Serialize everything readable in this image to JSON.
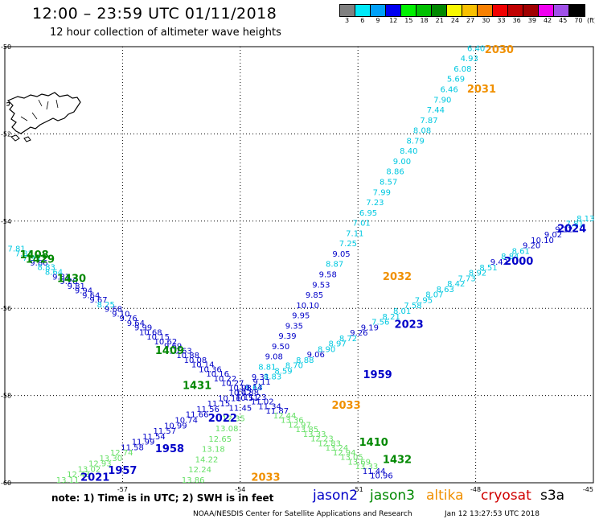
{
  "header": {
    "title": "12:00 – 23:59 UTC 01/11/2018",
    "subtitle": "12 hour collection of altimeter wave heights"
  },
  "scale": {
    "unit": "(ft)",
    "colors": [
      "#808080",
      "#00e8f8",
      "#00a0f8",
      "#0000f0",
      "#00f000",
      "#00c000",
      "#008800",
      "#f8f800",
      "#f8c000",
      "#f88000",
      "#f00000",
      "#c00000",
      "#a00000",
      "#f000f0",
      "#a050e8",
      "#000000"
    ],
    "labels": [
      "3",
      "6",
      "9",
      "12",
      "15",
      "18",
      "21",
      "24",
      "27",
      "30",
      "33",
      "36",
      "39",
      "42",
      "45",
      "70"
    ]
  },
  "map": {
    "x_ticks": [
      -57,
      -54,
      -51,
      -48,
      -45
    ],
    "y_ticks": [
      -50,
      -52,
      -54,
      -56,
      -58,
      -60
    ],
    "x_labels": [
      "-57",
      "-54",
      "-51",
      "-48",
      "-45"
    ],
    "y_labels": [
      "-50",
      "-52",
      "-54",
      "-56",
      "-58",
      "-60"
    ],
    "lon_range": [
      -60,
      -45
    ],
    "lat_range": [
      -60,
      -50
    ],
    "track_colors": {
      "jason2": "#0000c8",
      "jason3": "#008800",
      "altika": "#f09000",
      "cryosat": "#d00000",
      "s3a": "#000000"
    }
  },
  "tracks": [
    {
      "name": "altika",
      "color": "#f09000",
      "start": [
        -47.99,
        -50.1
      ],
      "end": [
        -55.2,
        -60.0
      ],
      "values": [
        [
          "6.40",
          "#00c8e0"
        ],
        [
          "4.93",
          "#00c8e0"
        ],
        [
          "6.08",
          "#00c8e0"
        ],
        [
          "5.69",
          "#00c8e0"
        ],
        [
          "6.46",
          "#00c8e0"
        ],
        [
          "7.90",
          "#00c8e0"
        ],
        [
          "7.44",
          "#00c8e0"
        ],
        [
          "7.87",
          "#00c8e0"
        ],
        [
          "8.08",
          "#00c8e0"
        ],
        [
          "8.79",
          "#00c8e0"
        ],
        [
          "8.40",
          "#00c8e0"
        ],
        [
          "9.00",
          "#00c8e0"
        ],
        [
          "8.86",
          "#00c8e0"
        ],
        [
          "8.57",
          "#00c8e0"
        ],
        [
          "7.99",
          "#00c8e0"
        ],
        [
          "7.23",
          "#00c8e0"
        ],
        [
          "6.95",
          "#00c8e0"
        ],
        [
          "7.01",
          "#00c8e0"
        ],
        [
          "7.11",
          "#00c8e0"
        ],
        [
          "7.25",
          "#00c8e0"
        ],
        [
          "9.05",
          "#0000c8"
        ],
        [
          "8.87",
          "#00c8e0"
        ],
        [
          "9.58",
          "#0000c8"
        ],
        [
          "9.53",
          "#0000c8"
        ],
        [
          "9.85",
          "#0000c8"
        ],
        [
          "10.10",
          "#0000c8"
        ],
        [
          "9.95",
          "#0000c8"
        ],
        [
          "9.35",
          "#0000c8"
        ],
        [
          "9.39",
          "#0000c8"
        ],
        [
          "9.50",
          "#0000c8"
        ],
        [
          "9.08",
          "#0000c8"
        ],
        [
          "8.81",
          "#00c8e0"
        ],
        [
          "9.31",
          "#0000c8"
        ],
        [
          "8.63",
          "#00c8e0"
        ],
        [
          "10.51",
          "#0000c8"
        ],
        [
          "11.45",
          "#0000c8"
        ],
        [
          "12.35",
          "#66e066"
        ],
        [
          "13.08",
          "#66e066"
        ],
        [
          "12.65",
          "#66e066"
        ],
        [
          "13.18",
          "#66e066"
        ],
        [
          "14.22",
          "#66e066"
        ],
        [
          "12.24",
          "#66e066"
        ],
        [
          "13.86",
          "#66e066"
        ]
      ],
      "labels": [
        {
          "text": "2030",
          "lon": -47.4,
          "lat": -50.15
        },
        {
          "text": "2031",
          "lon": -47.85,
          "lat": -51.05
        },
        {
          "text": "2032",
          "lon": -50.0,
          "lat": -55.35
        },
        {
          "text": "2033",
          "lon": -51.3,
          "lat": -58.3
        },
        {
          "text": "2033",
          "lon": -53.35,
          "lat": -59.95
        }
      ]
    },
    {
      "name": "jason2",
      "color": "#0000c8",
      "start": [
        -45.2,
        -54.0
      ],
      "end": [
        -58.4,
        -60.0
      ],
      "values": [
        [
          "8.13",
          "#00c8e0"
        ],
        [
          "7.81",
          "#00c8e0"
        ],
        [
          "9.12",
          "#0000c8"
        ],
        [
          "9.02",
          "#0000c8"
        ],
        [
          "10.10",
          "#0000c8"
        ],
        [
          "9.20",
          "#0000c8"
        ],
        [
          "8.61",
          "#00c8e0"
        ],
        [
          "8.84",
          "#00c8e0"
        ],
        [
          "9.42",
          "#0000c8"
        ],
        [
          "8.51",
          "#00c8e0"
        ],
        [
          "8.92",
          "#00c8e0"
        ],
        [
          "7.73",
          "#00c8e0"
        ],
        [
          "8.42",
          "#00c8e0"
        ],
        [
          "8.63",
          "#00c8e0"
        ],
        [
          "8.07",
          "#00c8e0"
        ],
        [
          "7.95",
          "#00c8e0"
        ],
        [
          "7.58",
          "#00c8e0"
        ],
        [
          "8.01",
          "#00c8e0"
        ],
        [
          "8.21",
          "#00c8e0"
        ],
        [
          "7.56",
          "#00c8e0"
        ],
        [
          "9.19",
          "#0000c8"
        ],
        [
          "9.26",
          "#0000c8"
        ],
        [
          "8.72",
          "#00c8e0"
        ],
        [
          "8.97",
          "#00c8e0"
        ],
        [
          "8.90",
          "#00c8e0"
        ],
        [
          "9.06",
          "#0000c8"
        ],
        [
          "8.88",
          "#00c8e0"
        ],
        [
          "8.70",
          "#00c8e0"
        ],
        [
          "8.59",
          "#00c8e0"
        ],
        [
          "8.83",
          "#00c8e0"
        ],
        [
          "9.11",
          "#0000c8"
        ],
        [
          "10.14",
          "#0000c8"
        ],
        [
          "10.42",
          "#0000c8"
        ],
        [
          "10.16",
          "#0000c8"
        ],
        [
          "11.15",
          "#0000c8"
        ],
        [
          "11.56",
          "#0000c8"
        ],
        [
          "11.66",
          "#0000c8"
        ],
        [
          "10.74",
          "#0000c8"
        ],
        [
          "10.99",
          "#0000c8"
        ],
        [
          "11.57",
          "#0000c8"
        ],
        [
          "11.54",
          "#0000c8"
        ],
        [
          "11.99",
          "#0000c8"
        ],
        [
          "11.58",
          "#0000c8"
        ],
        [
          "12.74",
          "#66e066"
        ],
        [
          "13.30",
          "#66e066"
        ],
        [
          "12.93",
          "#66e066"
        ],
        [
          "13.02",
          "#66e066"
        ],
        [
          "12.43",
          "#66e066"
        ],
        [
          "13.11",
          "#66e066"
        ]
      ],
      "labels": [
        {
          "text": "2024",
          "lon": -45.55,
          "lat": -54.25
        },
        {
          "text": "2000",
          "lon": -46.9,
          "lat": -55.0
        },
        {
          "text": "2023",
          "lon": -49.7,
          "lat": -56.45
        },
        {
          "text": "1959",
          "lon": -50.5,
          "lat": -57.6
        },
        {
          "text": "2022",
          "lon": -54.45,
          "lat": -58.6
        },
        {
          "text": "1958",
          "lon": -55.8,
          "lat": -59.3
        },
        {
          "text": "1957",
          "lon": -57.0,
          "lat": -59.8
        },
        {
          "text": "2021",
          "lon": -57.7,
          "lat": -59.95
        }
      ]
    },
    {
      "name": "jason3",
      "color": "#008800",
      "start": [
        -59.7,
        -54.7
      ],
      "end": [
        -50.4,
        -59.9
      ],
      "values": [
        [
          "7.81",
          "#00c8e0"
        ],
        [
          "7.83",
          "#00c8e0"
        ],
        [
          "7.95",
          "#00c8e0"
        ],
        [
          "9.86",
          "#0000c8"
        ],
        [
          "8.83",
          "#00c8e0"
        ],
        [
          "8.64",
          "#00c8e0"
        ],
        [
          "9.37",
          "#0000c8"
        ],
        [
          "9.28",
          "#0000c8"
        ],
        [
          "9.81",
          "#0000c8"
        ],
        [
          "9.94",
          "#0000c8"
        ],
        [
          "9.64",
          "#0000c8"
        ],
        [
          "9.67",
          "#0000c8"
        ],
        [
          "8.25",
          "#00c8e0"
        ],
        [
          "9.68",
          "#0000c8"
        ],
        [
          "9.10",
          "#0000c8"
        ],
        [
          "9.76",
          "#0000c8"
        ],
        [
          "9.64",
          "#0000c8"
        ],
        [
          "9.99",
          "#0000c8"
        ],
        [
          "10.68",
          "#0000c8"
        ],
        [
          "10.15",
          "#0000c8"
        ],
        [
          "10.62",
          "#0000c8"
        ],
        [
          "9.69",
          "#0000c8"
        ],
        [
          "10.63",
          "#0000c8"
        ],
        [
          "10.88",
          "#0000c8"
        ],
        [
          "10.08",
          "#0000c8"
        ],
        [
          "10.14",
          "#0000c8"
        ],
        [
          "10.36",
          "#0000c8"
        ],
        [
          "10.16",
          "#0000c8"
        ],
        [
          "10.22",
          "#0000c8"
        ],
        [
          "10.27",
          "#0000c8"
        ],
        [
          "10.98",
          "#0000c8"
        ],
        [
          "10.88",
          "#0000c8"
        ],
        [
          "11.23",
          "#0000c8"
        ],
        [
          "11.02",
          "#0000c8"
        ],
        [
          "11.34",
          "#0000c8"
        ],
        [
          "11.87",
          "#0000c8"
        ],
        [
          "12.44",
          "#66e066"
        ],
        [
          "13.36",
          "#66e066"
        ],
        [
          "12.97",
          "#66e066"
        ],
        [
          "13.85",
          "#66e066"
        ],
        [
          "13.33",
          "#66e066"
        ],
        [
          "12.23",
          "#66e066"
        ],
        [
          "12.83",
          "#66e066"
        ],
        [
          "13.24",
          "#66e066"
        ],
        [
          "12.94",
          "#66e066"
        ],
        [
          "13.05",
          "#66e066"
        ],
        [
          "13.69",
          "#66e066"
        ],
        [
          "13.33",
          "#66e066"
        ],
        [
          "11.44",
          "#0000c8"
        ],
        [
          "10.96",
          "#0000c8"
        ]
      ],
      "labels": [
        {
          "text": "1408",
          "lon": -59.25,
          "lat": -54.85
        },
        {
          "text": "1429",
          "lon": -59.1,
          "lat": -54.95
        },
        {
          "text": "1430",
          "lon": -58.3,
          "lat": -55.4
        },
        {
          "text": "1409",
          "lon": -55.8,
          "lat": -57.05
        },
        {
          "text": "1431",
          "lon": -55.1,
          "lat": -57.85
        },
        {
          "text": "1410",
          "lon": -50.6,
          "lat": -59.15
        },
        {
          "text": "1432",
          "lon": -50.0,
          "lat": -59.55
        }
      ]
    }
  ],
  "legend": {
    "note": "note: 1) Time is in UTC; 2) SWH is in feet",
    "items": [
      "jason2",
      "jason3",
      "altika",
      "cryosat",
      "s3a"
    ],
    "item_colors": [
      "#0000c8",
      "#008800",
      "#f09000",
      "#d00000",
      "#000000"
    ]
  },
  "footer": {
    "credit": "NOAA/NESDIS Center for Satellite Applications and Research",
    "timestamp": "Jan 12 13:27:53 UTC 2018"
  }
}
